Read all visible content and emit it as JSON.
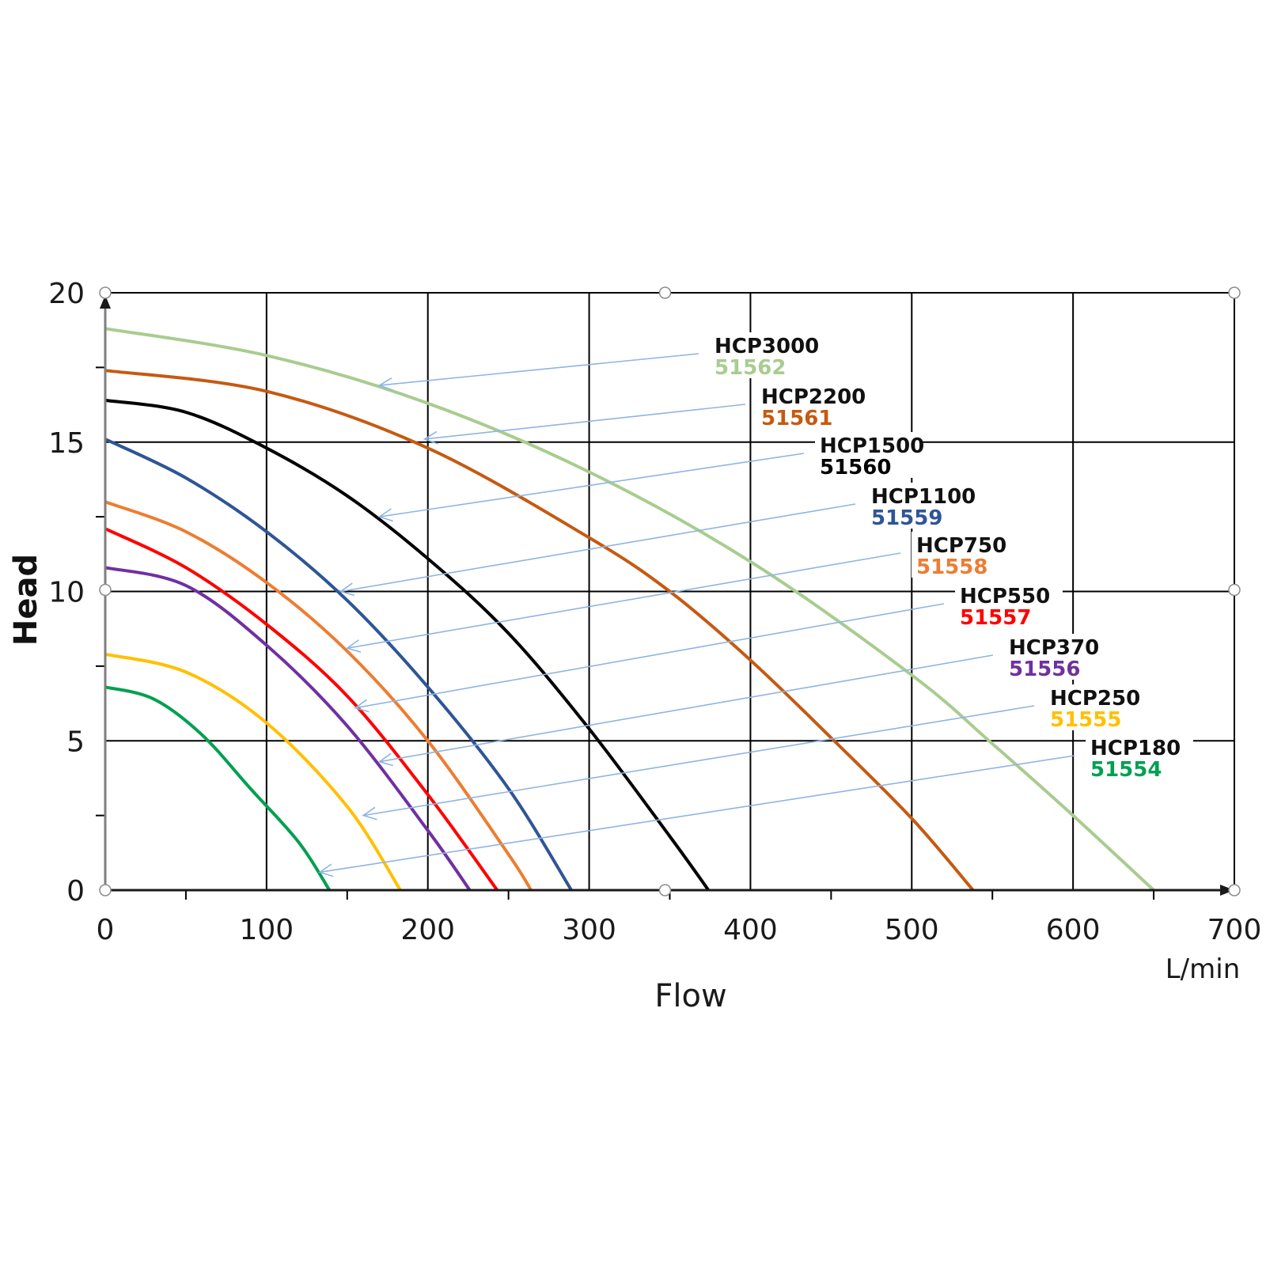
{
  "chart_data": {
    "type": "line",
    "title": "",
    "xlabel": "Flow",
    "xunit": "L/min",
    "ylabel": "Head",
    "xlim": [
      0,
      700
    ],
    "ylim": [
      0,
      20
    ],
    "xticks": [
      0,
      100,
      200,
      300,
      400,
      500,
      600,
      700
    ],
    "yticks": [
      0,
      5,
      10,
      15,
      20
    ],
    "grid": true,
    "series": [
      {
        "name": "HCP3000",
        "code": "51562",
        "color": "#a9cc8f",
        "x": [
          0,
          100,
          200,
          300,
          400,
          500,
          550,
          600,
          650
        ],
        "y": [
          18.8,
          17.9,
          16.3,
          14.0,
          11.0,
          7.2,
          4.9,
          2.5,
          0
        ]
      },
      {
        "name": "HCP2200",
        "code": "51561",
        "color": "#c55a11",
        "x": [
          0,
          100,
          200,
          300,
          350,
          400,
          450,
          500,
          538
        ],
        "y": [
          17.4,
          16.7,
          14.8,
          11.8,
          10.0,
          7.7,
          5.1,
          2.4,
          0
        ]
      },
      {
        "name": "HCP1500",
        "code": "51560",
        "color": "#000000",
        "x": [
          0,
          50,
          100,
          150,
          200,
          250,
          300,
          350,
          374
        ],
        "y": [
          16.4,
          16.0,
          14.8,
          13.2,
          11.1,
          8.6,
          5.4,
          1.8,
          0
        ]
      },
      {
        "name": "HCP1100",
        "code": "51559",
        "color": "#2e5597",
        "x": [
          0,
          50,
          100,
          150,
          200,
          250,
          289
        ],
        "y": [
          15.1,
          13.8,
          12.0,
          9.7,
          6.8,
          3.4,
          0
        ]
      },
      {
        "name": "HCP750",
        "code": "51558",
        "color": "#ed7d31",
        "x": [
          0,
          50,
          100,
          150,
          200,
          250,
          264
        ],
        "y": [
          13.0,
          12.0,
          10.3,
          8.0,
          5.0,
          1.2,
          0
        ]
      },
      {
        "name": "HCP550",
        "code": "51557",
        "color": "#ff0000",
        "x": [
          0,
          50,
          100,
          150,
          200,
          243
        ],
        "y": [
          12.1,
          10.8,
          8.9,
          6.5,
          3.2,
          0
        ]
      },
      {
        "name": "HCP370",
        "code": "51556",
        "color": "#7030a0",
        "x": [
          0,
          50,
          100,
          150,
          200,
          226
        ],
        "y": [
          10.8,
          10.2,
          8.2,
          5.5,
          2.0,
          0
        ]
      },
      {
        "name": "HCP250",
        "code": "51555",
        "color": "#ffc000",
        "x": [
          0,
          50,
          100,
          150,
          183
        ],
        "y": [
          7.9,
          7.3,
          5.6,
          2.8,
          0
        ]
      },
      {
        "name": "HCP180",
        "code": "51554",
        "color": "#00a050",
        "x": [
          0,
          30,
          60,
          90,
          120,
          139
        ],
        "y": [
          6.8,
          6.4,
          5.2,
          3.4,
          1.6,
          0
        ]
      }
    ]
  }
}
